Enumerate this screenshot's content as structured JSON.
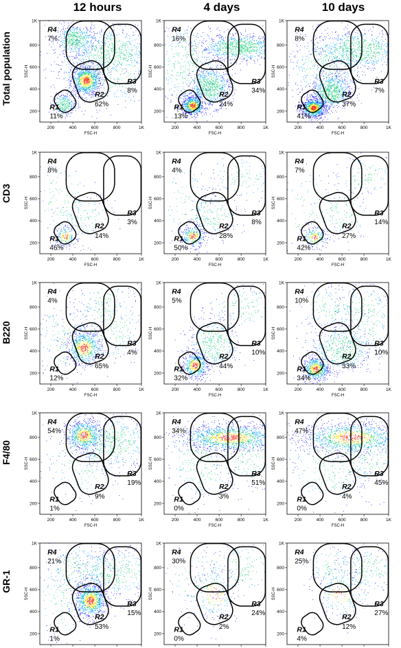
{
  "chart_data": {
    "type": "scatter",
    "layout": "grid",
    "columns": [
      "12 hours",
      "4 days",
      "10 days"
    ],
    "rows": [
      "Total population",
      "CD3",
      "B220",
      "F4/80",
      "GR-1"
    ],
    "xlabel": "FSC-H",
    "ylabel": "SSC-H",
    "xticks": [
      "200",
      "400",
      "600",
      "800",
      "1K"
    ],
    "yticks": [
      "200",
      "400",
      "600",
      "800",
      "1K"
    ],
    "xlim": [
      100,
      1024
    ],
    "ylim": [
      100,
      1024
    ],
    "gate_names": [
      "R1",
      "R2",
      "R3",
      "R4"
    ],
    "gates_percent": [
      [
        {
          "R1": "11%",
          "R2": "62%",
          "R3": "8%",
          "R4": "7%"
        },
        {
          "R1": "13%",
          "R2": "24%",
          "R3": "34%",
          "R4": "16%"
        },
        {
          "R1": "41%",
          "R2": "37%",
          "R3": "7%",
          "R4": "8%"
        }
      ],
      [
        {
          "R1": "46%",
          "R2": "14%",
          "R3": "3%",
          "R4": "8%"
        },
        {
          "R1": "50%",
          "R2": "28%",
          "R3": "8%",
          "R4": "4%"
        },
        {
          "R1": "42%",
          "R2": "27%",
          "R3": "14%",
          "R4": "7%"
        }
      ],
      [
        {
          "R1": "12%",
          "R2": "65%",
          "R3": "4%",
          "R4": "4%"
        },
        {
          "R1": "32%",
          "R2": "44%",
          "R3": "10%",
          "R4": "5%"
        },
        {
          "R1": "34%",
          "R2": "33%",
          "R3": "10%",
          "R4": "10%"
        }
      ],
      [
        {
          "R1": "1%",
          "R2": "9%",
          "R3": "19%",
          "R4": "54%"
        },
        {
          "R1": "0%",
          "R2": "3%",
          "R3": "51%",
          "R4": "34%"
        },
        {
          "R1": "0%",
          "R2": "4%",
          "R3": "45%",
          "R4": "47%"
        }
      ],
      [
        {
          "R1": "1%",
          "R2": "53%",
          "R3": "15%",
          "R4": "21%"
        },
        {
          "R1": "0%",
          "R2": "2%",
          "R3": "24%",
          "R4": "30%"
        },
        {
          "R1": "4%",
          "R2": "12%",
          "R3": "27%",
          "R4": "25%"
        }
      ]
    ],
    "colormap": [
      "#1a1aff",
      "#00a0ff",
      "#20d080",
      "#ffe020",
      "#ff3010"
    ]
  }
}
